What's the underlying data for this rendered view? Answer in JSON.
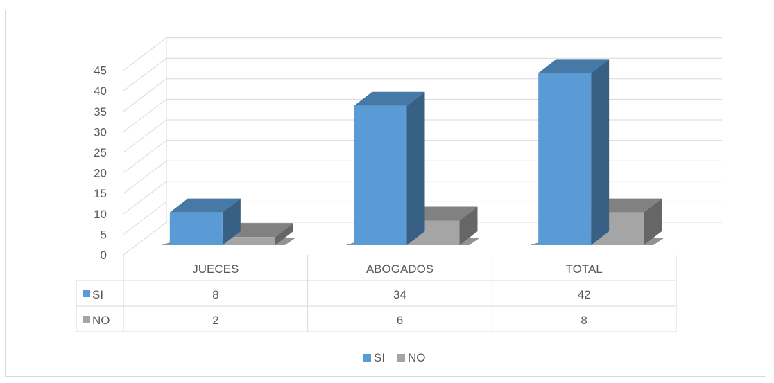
{
  "chart_data": {
    "type": "bar",
    "title": "",
    "xlabel": "",
    "ylabel": "",
    "categories": [
      "JUECES",
      "ABOGADOS",
      "TOTAL"
    ],
    "series": [
      {
        "name": "SI",
        "values": [
          8,
          34,
          42
        ],
        "color": "#5b9bd5"
      },
      {
        "name": "NO",
        "values": [
          2,
          6,
          8
        ],
        "color": "#a5a5a5"
      }
    ],
    "ylim": [
      0,
      45
    ],
    "yticks": [
      "0",
      "5",
      "10",
      "15",
      "20",
      "25",
      "30",
      "35",
      "40",
      "45"
    ],
    "grid": true,
    "three_d": true,
    "data_table": true,
    "legend": "bottom"
  }
}
